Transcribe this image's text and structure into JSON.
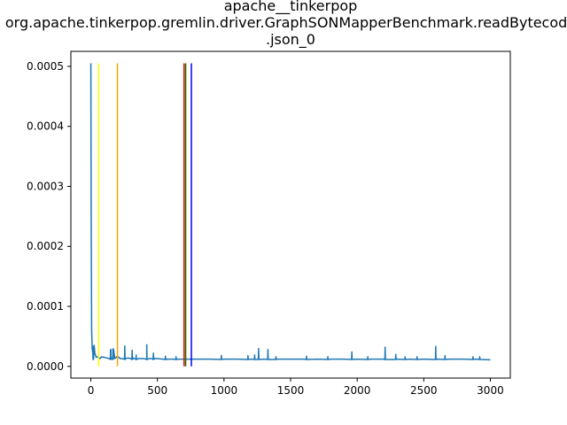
{
  "chart_data": {
    "type": "line",
    "title_lines": [
      "apache__tinkerpop",
      "org.apache.tinkerpop.gremlin.driver.GraphSONMapperBenchmark.readBytecode",
      ".json_0"
    ],
    "xlabel": "",
    "ylabel": "",
    "xlim": [
      -150,
      3150
    ],
    "ylim": [
      -1.95e-05,
      0.000525
    ],
    "xticks": [
      0,
      500,
      1000,
      1500,
      2000,
      2500,
      3000
    ],
    "xtick_labels": [
      "0",
      "500",
      "1000",
      "1500",
      "2000",
      "2500",
      "3000"
    ],
    "yticks": [
      0,
      0.0001,
      0.0002,
      0.0003,
      0.0004,
      0.0005
    ],
    "ytick_labels": [
      "0.0000",
      "0.0001",
      "0.0002",
      "0.0003",
      "0.0004",
      "0.0005"
    ],
    "grid": false,
    "series": [
      {
        "color": "#1f77b4",
        "baseline": 1.15e-05,
        "x": [
          0,
          3,
          6,
          10,
          15,
          20,
          25,
          30,
          35,
          40,
          50,
          60,
          70,
          80,
          100,
          120,
          140,
          150,
          160,
          170,
          180,
          200,
          220,
          240,
          260,
          280,
          300,
          320,
          340,
          360,
          380,
          400,
          420,
          440,
          460,
          480,
          500,
          540,
          580,
          620,
          660,
          700,
          780,
          900,
          1000,
          1100,
          1200,
          1300,
          1400,
          1500,
          1600,
          1700,
          1800,
          1900,
          2000,
          2100,
          2200,
          2300,
          2400,
          2500,
          2600,
          2700,
          2800,
          2900,
          3000
        ],
        "y": [
          0.000505,
          0.00021,
          6e-05,
          3e-05,
          2.2e-05,
          3.1e-05,
          3.5e-05,
          2.2e-05,
          1.8e-05,
          1.5e-05,
          1.6e-05,
          1.4e-05,
          1.3e-05,
          1.6e-05,
          1.5e-05,
          1.4e-05,
          1.3e-05,
          2.8e-05,
          1.4e-05,
          2.9e-05,
          1.3e-05,
          1.7e-05,
          1.3e-05,
          1.3e-05,
          1.3e-05,
          1.4e-05,
          1.3e-05,
          1.4e-05,
          1.3e-05,
          1.3e-05,
          1.3e-05,
          1.3e-05,
          1.3e-05,
          1.3e-05,
          1.3e-05,
          1.3e-05,
          1.3e-05,
          1.2e-05,
          1.2e-05,
          1.2e-05,
          1.2e-05,
          1.2e-05,
          1.2e-05,
          1.2e-05,
          1.2e-05,
          1.2e-05,
          1.2e-05,
          1.2e-05,
          1.2e-05,
          1.2e-05,
          1.2e-05,
          1.2e-05,
          1.2e-05,
          1.2e-05,
          1.2e-05,
          1.2e-05,
          1.2e-05,
          1.2e-05,
          1.2e-05,
          1.2e-05,
          1.2e-05,
          1.2e-05,
          1.2e-05,
          1.2e-05,
          1.1e-05
        ],
        "spikes": [
          {
            "x": 18,
            "y": 3.3e-05
          },
          {
            "x": 148,
            "y": 2.8e-05
          },
          {
            "x": 166,
            "y": 2.9e-05
          },
          {
            "x": 255,
            "y": 3.4e-05
          },
          {
            "x": 310,
            "y": 2.7e-05
          },
          {
            "x": 340,
            "y": 1.9e-05
          },
          {
            "x": 420,
            "y": 3.6e-05
          },
          {
            "x": 470,
            "y": 2.2e-05
          },
          {
            "x": 560,
            "y": 1.7e-05
          },
          {
            "x": 640,
            "y": 1.6e-05
          },
          {
            "x": 980,
            "y": 1.8e-05
          },
          {
            "x": 1180,
            "y": 1.8e-05
          },
          {
            "x": 1230,
            "y": 1.9e-05
          },
          {
            "x": 1260,
            "y": 3e-05
          },
          {
            "x": 1330,
            "y": 2.8e-05
          },
          {
            "x": 1390,
            "y": 1.6e-05
          },
          {
            "x": 1620,
            "y": 1.7e-05
          },
          {
            "x": 1780,
            "y": 1.6e-05
          },
          {
            "x": 1960,
            "y": 2.4e-05
          },
          {
            "x": 2080,
            "y": 1.6e-05
          },
          {
            "x": 2210,
            "y": 3.2e-05
          },
          {
            "x": 2290,
            "y": 2e-05
          },
          {
            "x": 2360,
            "y": 1.6e-05
          },
          {
            "x": 2450,
            "y": 1.6e-05
          },
          {
            "x": 2590,
            "y": 3.3e-05
          },
          {
            "x": 2660,
            "y": 1.8e-05
          },
          {
            "x": 2870,
            "y": 1.6e-05
          },
          {
            "x": 2920,
            "y": 1.6e-05
          }
        ]
      }
    ],
    "vertical_lines": [
      {
        "x": 58,
        "color": "#ffff00"
      },
      {
        "x": 200,
        "color": "#ffa500"
      },
      {
        "x": 700,
        "color": "#ff0000"
      },
      {
        "x": 712,
        "color": "#008000"
      },
      {
        "x": 755,
        "color": "#0000ff"
      }
    ],
    "vertical_lines_top": 0.000505
  }
}
